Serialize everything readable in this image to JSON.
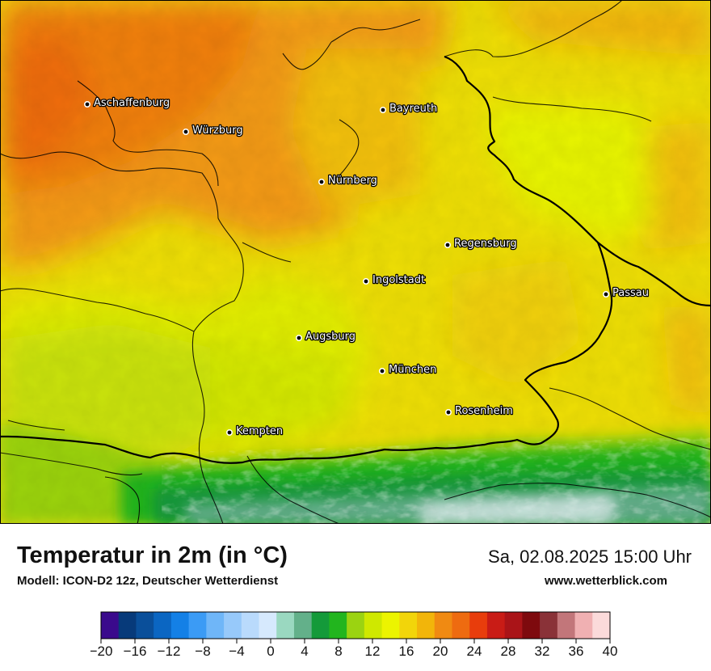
{
  "map": {
    "title": "Temperatur in 2m (in °C)",
    "model": "Modell: ICON-D2 12z, Deutscher Wetterdienst",
    "datetime": "Sa, 02.08.2025 15:00 Uhr",
    "website": "www.wetterblick.com",
    "cities": [
      {
        "name": "Aschaffenburg"
      },
      {
        "name": "Würzburg"
      },
      {
        "name": "Bayreuth"
      },
      {
        "name": "Nürnberg"
      },
      {
        "name": "Regensburg"
      },
      {
        "name": "Ingolstadt"
      },
      {
        "name": "Passau"
      },
      {
        "name": "Augsburg"
      },
      {
        "name": "München"
      },
      {
        "name": "Rosenheim"
      },
      {
        "name": "Kempten"
      }
    ]
  },
  "legend": {
    "ticks": [
      "−20",
      "−16",
      "−12",
      "−8",
      "−4",
      "0",
      "4",
      "8",
      "12",
      "16",
      "20",
      "24",
      "28",
      "32",
      "36",
      "40"
    ],
    "colors": [
      "#3a0a8c",
      "#073a7a",
      "#0a4f9a",
      "#0b66c2",
      "#1480e6",
      "#3b9bf5",
      "#6fb6f8",
      "#97c9fa",
      "#b9dafc",
      "#d6e9fd",
      "#9ad8c0",
      "#63b08a",
      "#149a3a",
      "#22b51e",
      "#9bd311",
      "#cfe800",
      "#ecf400",
      "#f2d50a",
      "#f2b50a",
      "#f08a12",
      "#ee6b10",
      "#e83d0c",
      "#c91c16",
      "#aa1418",
      "#7e0a0e",
      "#8a3238",
      "#c2767a",
      "#f0b0b2",
      "#fbdada"
    ],
    "colors_note": "colors"
  }
}
